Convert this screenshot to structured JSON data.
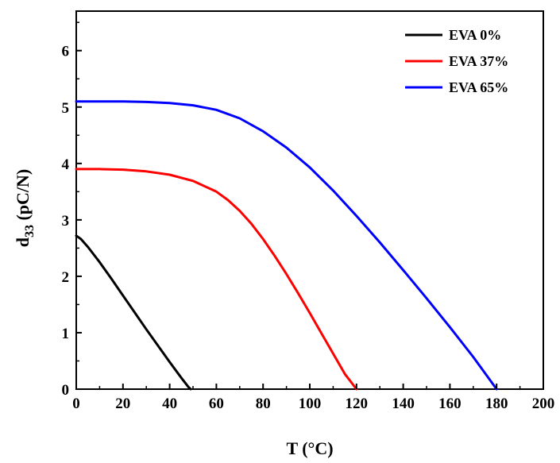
{
  "chart_data": {
    "type": "line",
    "xlabel": "T (°C)",
    "ylabel_main": "d",
    "ylabel_sub": "33",
    "ylabel_unit": " (pC/N)",
    "xlim": [
      0,
      200
    ],
    "ylim": [
      0,
      6.7
    ],
    "xticks": [
      0,
      20,
      40,
      60,
      80,
      100,
      120,
      140,
      160,
      180,
      200
    ],
    "yticks": [
      0,
      1,
      2,
      3,
      4,
      5,
      6
    ],
    "grid": false,
    "legend_position": "top-right",
    "series": [
      {
        "name": "EVA 0%",
        "color": "#000000",
        "x": [
          0,
          2,
          5,
          10,
          15,
          20,
          25,
          30,
          35,
          40,
          45,
          48,
          49
        ],
        "y": [
          2.72,
          2.66,
          2.52,
          2.25,
          1.96,
          1.66,
          1.36,
          1.06,
          0.77,
          0.48,
          0.2,
          0.04,
          0
        ]
      },
      {
        "name": "EVA 37%",
        "color": "#ff0000",
        "x": [
          0,
          10,
          20,
          30,
          40,
          50,
          60,
          65,
          70,
          75,
          80,
          85,
          90,
          95,
          100,
          105,
          110,
          115,
          120
        ],
        "y": [
          3.9,
          3.9,
          3.89,
          3.86,
          3.8,
          3.69,
          3.5,
          3.35,
          3.16,
          2.93,
          2.66,
          2.36,
          2.04,
          1.7,
          1.35,
          0.99,
          0.63,
          0.27,
          0
        ]
      },
      {
        "name": "EVA 65%",
        "color": "#0000ff",
        "x": [
          0,
          10,
          20,
          30,
          40,
          50,
          60,
          70,
          80,
          90,
          100,
          110,
          120,
          130,
          140,
          150,
          160,
          170,
          180
        ],
        "y": [
          5.1,
          5.1,
          5.1,
          5.09,
          5.07,
          5.03,
          4.95,
          4.8,
          4.57,
          4.28,
          3.93,
          3.52,
          3.07,
          2.6,
          2.11,
          1.61,
          1.1,
          0.57,
          0
        ]
      }
    ]
  }
}
